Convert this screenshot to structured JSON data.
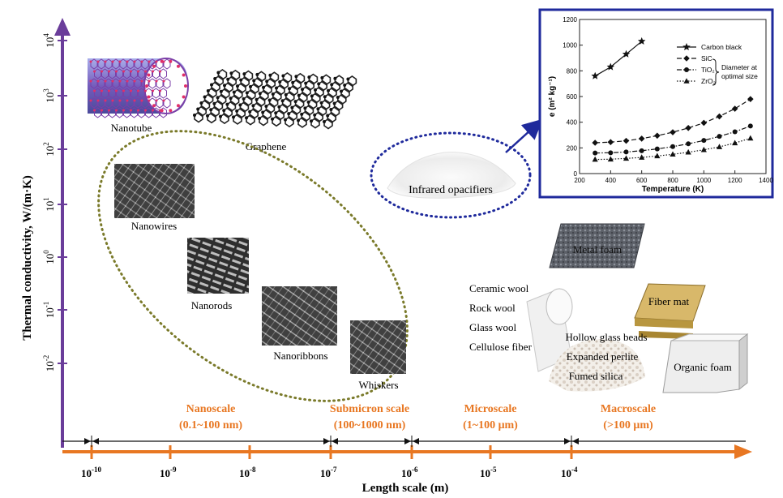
{
  "y_axis": {
    "label": "Thermal conductivity, W/(m·K)",
    "ticks": [
      {
        "base": "10",
        "exp": "4"
      },
      {
        "base": "10",
        "exp": "3"
      },
      {
        "base": "10",
        "exp": "2"
      },
      {
        "base": "10",
        "exp": "1"
      },
      {
        "base": "10",
        "exp": "0"
      },
      {
        "base": "10",
        "exp": "-1"
      },
      {
        "base": "10",
        "exp": "-2"
      }
    ]
  },
  "x_axis": {
    "label": "Length scale (m)",
    "ticks": [
      {
        "base": "10",
        "exp": "-10"
      },
      {
        "base": "10",
        "exp": "-9"
      },
      {
        "base": "10",
        "exp": "-8"
      },
      {
        "base": "10",
        "exp": "-7"
      },
      {
        "base": "10",
        "exp": "-6"
      },
      {
        "base": "10",
        "exp": "-5"
      },
      {
        "base": "10",
        "exp": "-4"
      }
    ]
  },
  "scales": [
    {
      "name": "Nanoscale",
      "range": "(0.1~100 nm)"
    },
    {
      "name": "Submicron scale",
      "range": "(100~1000 nm)"
    },
    {
      "name": "Microscale",
      "range": "(1~100 μm)"
    },
    {
      "name": "Macroscale",
      "range": "(>100 μm)"
    }
  ],
  "materials": {
    "nanotube": "Nanotube",
    "graphene": "Graphene",
    "nanowires": "Nanowires",
    "nanorods": "Nanorods",
    "nanoribbons": "Nanoribbons",
    "whiskers": "Whiskers",
    "infrared_opacifiers": "Infrared opacifiers",
    "metal_foam": "Metal foam",
    "fiber_mat": "Fiber mat",
    "organic_foam": "Organic foam",
    "wool_list": [
      "Ceramic wool",
      "Rock wool",
      "Glass wool",
      "Cellulose fiber"
    ],
    "beads_list": [
      "Hollow glass beads",
      "Expanded perlite",
      "Fumed silica"
    ]
  },
  "colors": {
    "y_axis": "#6a3d9a",
    "x_axis": "#e87722",
    "scale_text": "#e87722",
    "ellipse_dotted": "#7a7a2a",
    "ellipse_blue": "#1f2a9c",
    "inset_border": "#1f2a9c"
  },
  "chart_data": {
    "type": "line",
    "xlabel": "Temperature (K)",
    "ylabel": "e (m² kg⁻¹)",
    "xlim": [
      200,
      1400
    ],
    "ylim": [
      0,
      1200
    ],
    "xticks": [
      200,
      400,
      600,
      800,
      1000,
      1200,
      1400
    ],
    "yticks": [
      0,
      200,
      400,
      600,
      800,
      1000,
      1200
    ],
    "legend_position": "top-right",
    "legend_note": "Diameter at optimal size",
    "series": [
      {
        "name": "Carbon black",
        "marker": "star",
        "dash": "solid",
        "x": [
          300,
          400,
          500,
          600
        ],
        "y": [
          760,
          830,
          930,
          1030
        ]
      },
      {
        "name": "SiC",
        "marker": "diamond",
        "dash": "dash",
        "x": [
          300,
          400,
          500,
          600,
          700,
          800,
          900,
          1000,
          1100,
          1200,
          1300
        ],
        "y": [
          240,
          245,
          255,
          272,
          295,
          322,
          355,
          395,
          445,
          505,
          580
        ]
      },
      {
        "name": "TiO₂",
        "marker": "circle",
        "dash": "dashdot",
        "x": [
          300,
          400,
          500,
          600,
          700,
          800,
          900,
          1000,
          1100,
          1200,
          1300
        ],
        "y": [
          160,
          162,
          168,
          178,
          192,
          210,
          232,
          258,
          290,
          325,
          370
        ]
      },
      {
        "name": "ZrO₂",
        "marker": "triangle",
        "dash": "dot",
        "x": [
          300,
          400,
          500,
          600,
          700,
          800,
          900,
          1000,
          1100,
          1200,
          1300
        ],
        "y": [
          110,
          112,
          118,
          126,
          137,
          150,
          166,
          185,
          208,
          238,
          275
        ]
      }
    ]
  }
}
